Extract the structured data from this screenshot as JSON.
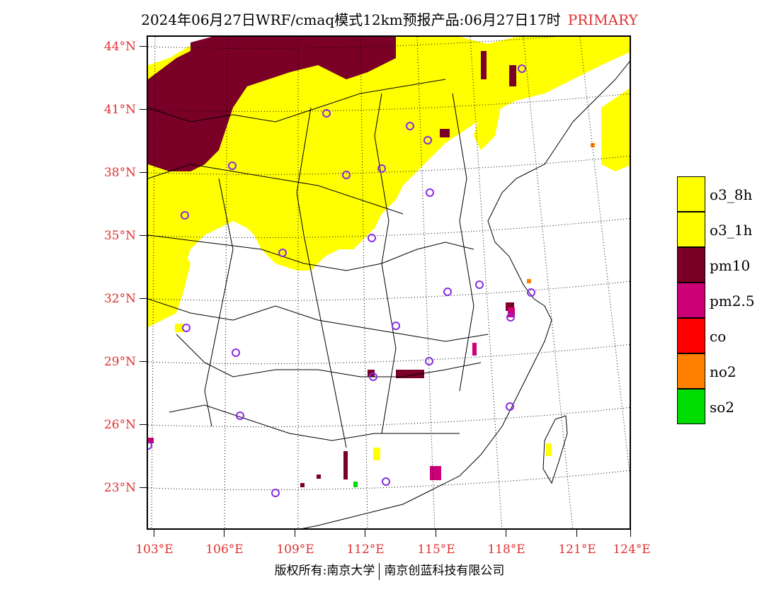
{
  "title": {
    "text": "2024年06月27日WRF/cmaq模式12km预报产品:06月27日17时",
    "tag": "PRIMARY",
    "tag_color": "#e03030"
  },
  "axes": {
    "lat_labels": [
      "44°N",
      "41°N",
      "38°N",
      "35°N",
      "32°N",
      "29°N",
      "26°N",
      "23°N"
    ],
    "lon_labels": [
      "103°E",
      "106°E",
      "109°E",
      "112°E",
      "115°E",
      "118°E",
      "121°E",
      "124°E"
    ],
    "label_color": "#e03030"
  },
  "legend": {
    "items": [
      {
        "label": "o3_8h",
        "color": "#ffff00"
      },
      {
        "label": "o3_1h",
        "color": "#ffff00"
      },
      {
        "label": "pm10",
        "color": "#7a0028"
      },
      {
        "label": "pm2.5",
        "color": "#cc0077"
      },
      {
        "label": "co",
        "color": "#ff0000"
      },
      {
        "label": "no2",
        "color": "#ff7f00"
      },
      {
        "label": "so2",
        "color": "#00dd00"
      }
    ]
  },
  "copyright": {
    "left": "版权所有:南京大学",
    "right": "南京创蓝科技有限公司"
  },
  "colors": {
    "o3": "#ffff00",
    "pm10": "#7a0028",
    "pm25": "#cc0077",
    "no2": "#ff7f00",
    "so2": "#00dd00",
    "station": "#8a2be2"
  }
}
